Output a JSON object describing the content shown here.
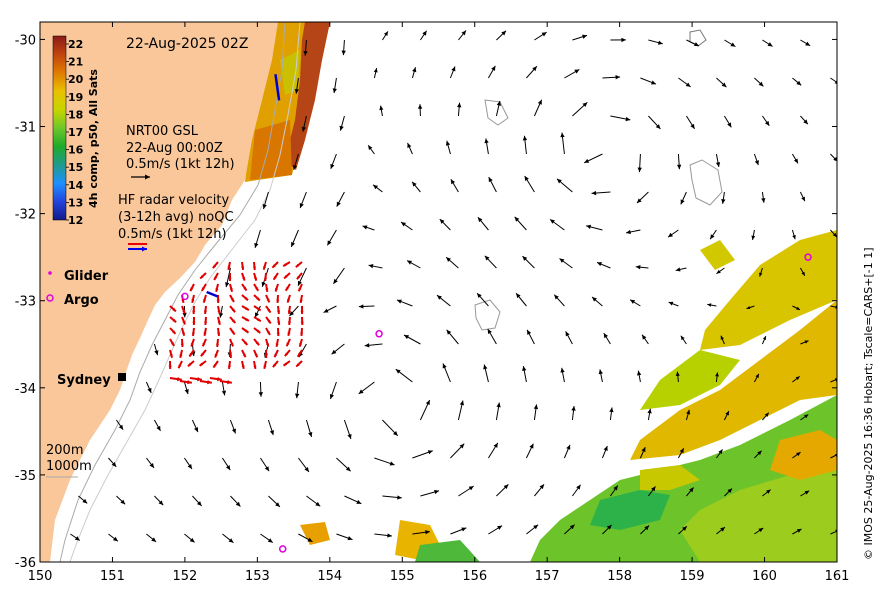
{
  "map": {
    "timestamp": "22-Aug-2025 02Z",
    "credit": "© IMOS 25-Aug-2025 16:36 Hobart; Tscale=CARS+[-1 1]",
    "lon_range": [
      150,
      161
    ],
    "lat_range": [
      -36,
      -29.8
    ],
    "lon_ticks": [
      "150",
      "151",
      "152",
      "153",
      "154",
      "155",
      "156",
      "157",
      "158",
      "159",
      "160",
      "161"
    ],
    "lat_ticks": [
      "-30",
      "-31",
      "-32",
      "-33",
      "-34",
      "-35",
      "-36"
    ]
  },
  "colorbar": {
    "title": "4h comp, p50, All Sats",
    "ticks": [
      "22",
      "21",
      "20",
      "19",
      "18",
      "17",
      "16",
      "15",
      "14",
      "13",
      "12"
    ],
    "colors": [
      "#8b1a1a",
      "#c1440e",
      "#e07b00",
      "#e8c100",
      "#c8d400",
      "#6ec82a",
      "#1faa2a",
      "#1f9a8a",
      "#1e90ff",
      "#2244dd",
      "#111a88"
    ]
  },
  "legend": {
    "nrt_line1": "NRT00 GSL",
    "nrt_line2": "22-Aug 00:00Z",
    "nrt_line3": "0.5m/s (1kt 12h)",
    "hf_line1": "HF radar velocity",
    "hf_line2": "(3-12h avg) noQC",
    "hf_line3": "0.5m/s (1kt 12h)",
    "glider": "Glider",
    "argo": "Argo",
    "sydney": "Sydney",
    "depth_200": "200m",
    "depth_1000": "1000m"
  },
  "observations": {
    "argo_floats": [
      [
        152.0,
        -32.95
      ],
      [
        154.68,
        -33.38
      ],
      [
        160.6,
        -32.5
      ],
      [
        153.35,
        -35.85
      ]
    ],
    "glider_tracks": [
      [
        [
          153.25,
          -30.4
        ],
        [
          153.3,
          -30.7
        ]
      ],
      [
        [
          152.3,
          -32.9
        ],
        [
          152.45,
          -32.95
        ]
      ]
    ]
  }
}
